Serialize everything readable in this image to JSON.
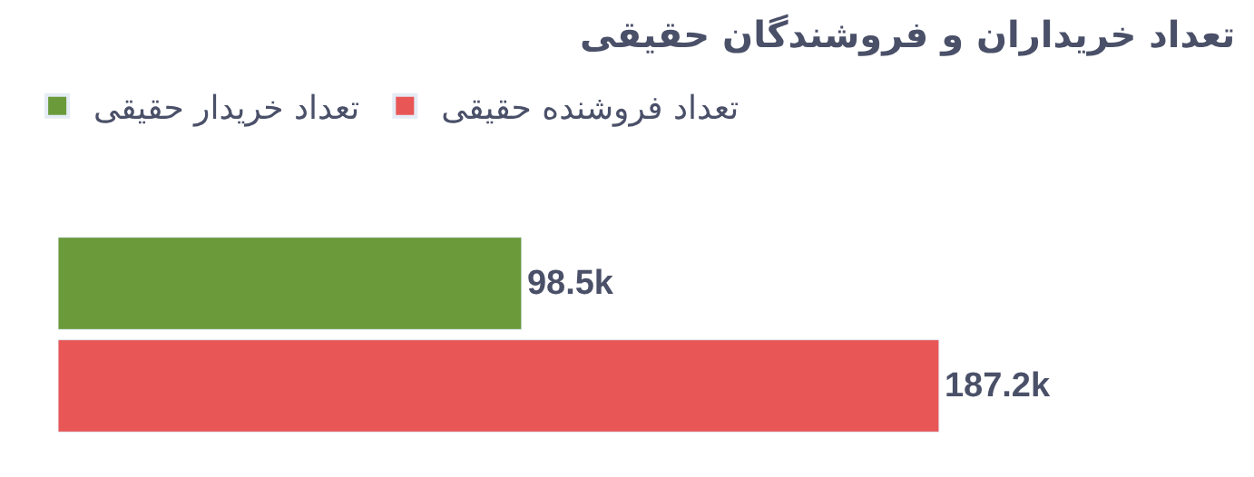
{
  "chart_data": {
    "type": "bar",
    "orientation": "horizontal",
    "title": "تعداد خریداران و فروشندگان حقیقی",
    "categories": [
      null
    ],
    "series": [
      {
        "name": "تعداد خریدار حقیقی",
        "color": "#6a9a3a",
        "values": [
          98500
        ],
        "value_labels": [
          "98.5k"
        ]
      },
      {
        "name": "تعداد فروشنده حقیقی",
        "color": "#e85656",
        "values": [
          187200
        ],
        "value_labels": [
          "187.2k"
        ]
      }
    ],
    "legend": "top left"
  }
}
